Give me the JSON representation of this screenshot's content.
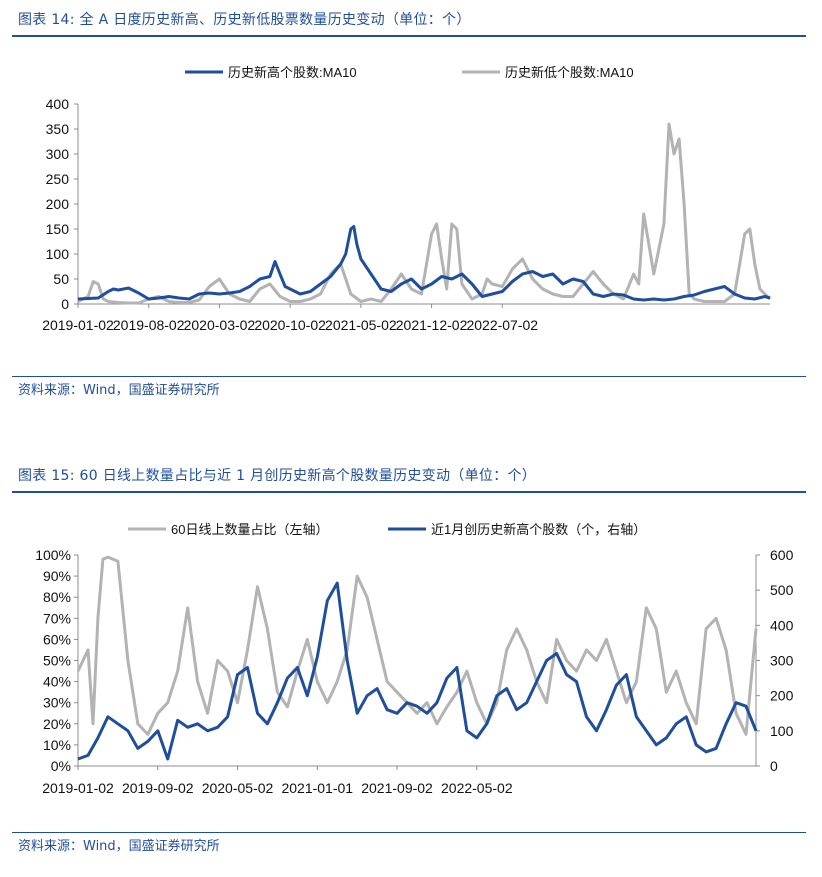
{
  "figure14": {
    "title": "图表 14:  全 A 日度历史新高、历史新低股票数量历史变动（单位：个）",
    "source": "资料来源：Wind，国盛证券研究所"
  },
  "figure15": {
    "title": "图表 15:  60 日线上数量占比与近 1 月创历史新高个股数量历史变动（单位：个）",
    "source": "资料来源：Wind，国盛证券研究所"
  },
  "colors": {
    "navy": "#1f4e9a",
    "gray": "#b3b3b3",
    "axis": "#8c8c8c"
  },
  "chart_data": [
    {
      "type": "line",
      "title": "全 A 日度历史新高、历史新低股票数量历史变动（单位：个）",
      "ylim": [
        0,
        400
      ],
      "yticks": [
        "0",
        "50",
        "100",
        "150",
        "200",
        "250",
        "300",
        "350",
        "400"
      ],
      "xticks": [
        "2019-01-02",
        "2019-08-02",
        "2020-03-02",
        "2020-10-02",
        "2021-05-02",
        "2021-12-02",
        "2022-07-02"
      ],
      "x_range": [
        0,
        68.5
      ],
      "series": [
        {
          "name": "历史新高个股数:MA10",
          "color": "#1f4e9a",
          "x": [
            0,
            2,
            3,
            3.5,
            4,
            5,
            6,
            7,
            8,
            9,
            10,
            11,
            12,
            13,
            14,
            15,
            16,
            17,
            18,
            19,
            19.5,
            20,
            20.5,
            21,
            22,
            23,
            24,
            25,
            26,
            26.5,
            27,
            27.3,
            27.6,
            28,
            29,
            30,
            31,
            32,
            33,
            34,
            35,
            36,
            37,
            38,
            39,
            40,
            41,
            42,
            43,
            44,
            45,
            46,
            47,
            48,
            49,
            50,
            51,
            52,
            53,
            54,
            55,
            56,
            57,
            58,
            59,
            60,
            61,
            62,
            63,
            64,
            65,
            66,
            67,
            68,
            68.5
          ],
          "y": [
            10,
            12,
            25,
            30,
            28,
            32,
            22,
            10,
            12,
            15,
            12,
            10,
            20,
            22,
            20,
            22,
            25,
            35,
            50,
            55,
            85,
            60,
            35,
            30,
            20,
            25,
            40,
            55,
            80,
            100,
            150,
            155,
            120,
            90,
            60,
            30,
            25,
            40,
            50,
            30,
            40,
            55,
            50,
            60,
            40,
            15,
            20,
            25,
            45,
            60,
            65,
            55,
            60,
            40,
            50,
            45,
            20,
            15,
            20,
            18,
            10,
            8,
            10,
            8,
            10,
            15,
            18,
            25,
            30,
            35,
            20,
            12,
            10,
            15,
            12
          ]
        },
        {
          "name": "历史新低个股数:MA10",
          "color": "#b3b3b3",
          "x": [
            0,
            1,
            1.5,
            2,
            2.5,
            3,
            4,
            5,
            6,
            7,
            8,
            9,
            10,
            11,
            12,
            13,
            14,
            15,
            16,
            17,
            18,
            19,
            20,
            21,
            22,
            23,
            24,
            25,
            26,
            27,
            28,
            29,
            30,
            31,
            32,
            33,
            34,
            35,
            35.5,
            36,
            36.5,
            37,
            37.5,
            38,
            39,
            40,
            40.5,
            41,
            42,
            43,
            44,
            45,
            46,
            47,
            48,
            49,
            50,
            51,
            52,
            53,
            54,
            55,
            55.5,
            56,
            56.5,
            57,
            58,
            58.5,
            59,
            59.5,
            60,
            60.5,
            61,
            62,
            63,
            64,
            65,
            65.5,
            66,
            66.5,
            67,
            67.5,
            68,
            68.5
          ],
          "y": [
            5,
            15,
            45,
            40,
            10,
            5,
            3,
            2,
            2,
            10,
            15,
            5,
            3,
            3,
            8,
            35,
            50,
            20,
            10,
            5,
            30,
            40,
            15,
            5,
            5,
            10,
            20,
            60,
            80,
            20,
            5,
            10,
            5,
            30,
            60,
            30,
            20,
            140,
            160,
            90,
            30,
            160,
            150,
            40,
            10,
            20,
            50,
            40,
            35,
            70,
            90,
            50,
            30,
            20,
            15,
            15,
            40,
            65,
            40,
            20,
            10,
            60,
            40,
            180,
            120,
            60,
            160,
            360,
            300,
            330,
            200,
            20,
            10,
            5,
            5,
            5,
            20,
            80,
            140,
            150,
            80,
            30,
            20,
            10
          ]
        }
      ]
    },
    {
      "type": "line",
      "title": "60 日线上数量占比与近 1 月创历史新高个股数量历史变动（单位：个）",
      "ylim": [
        0,
        100
      ],
      "y2lim": [
        0,
        600
      ],
      "yticks": [
        "0%",
        "10%",
        "20%",
        "30%",
        "40%",
        "50%",
        "60%",
        "70%",
        "80%",
        "90%",
        "100%"
      ],
      "y2ticks": [
        "0",
        "100",
        "200",
        "300",
        "400",
        "500",
        "600"
      ],
      "xticks": [
        "2019-01-02",
        "2019-09-02",
        "2020-05-02",
        "2021-01-01",
        "2021-09-02",
        "2022-05-02"
      ],
      "x_range": [
        0,
        68
      ],
      "series": [
        {
          "name": "60日线上数量占比（左轴）",
          "color": "#b3b3b3",
          "axis": "left",
          "x": [
            0,
            1,
            1.5,
            2,
            2.5,
            3,
            4,
            5,
            6,
            7,
            8,
            9,
            10,
            11,
            12,
            13,
            14,
            15,
            16,
            17,
            18,
            19,
            20,
            21,
            22,
            23,
            24,
            25,
            26,
            27,
            28,
            29,
            30,
            31,
            32,
            33,
            34,
            35,
            36,
            37,
            38,
            39,
            40,
            41,
            42,
            43,
            44,
            45,
            46,
            47,
            48,
            49,
            50,
            51,
            52,
            53,
            54,
            55,
            56,
            57,
            58,
            59,
            60,
            61,
            62,
            63,
            64,
            65,
            66,
            67,
            68
          ],
          "y": [
            45,
            55,
            20,
            70,
            98,
            99,
            97,
            50,
            20,
            15,
            25,
            30,
            45,
            75,
            40,
            25,
            50,
            45,
            30,
            55,
            85,
            65,
            35,
            28,
            45,
            60,
            40,
            30,
            40,
            55,
            90,
            80,
            60,
            40,
            35,
            30,
            25,
            30,
            20,
            28,
            35,
            45,
            30,
            20,
            30,
            55,
            65,
            55,
            40,
            30,
            60,
            50,
            45,
            55,
            50,
            60,
            45,
            30,
            40,
            75,
            65,
            35,
            45,
            30,
            20,
            65,
            70,
            55,
            25,
            15,
            65
          ]
        },
        {
          "name": "近1月创历史新高个股数（个，右轴）",
          "color": "#1f4e9a",
          "axis": "right",
          "x": [
            0,
            1,
            2,
            3,
            4,
            5,
            6,
            7,
            8,
            9,
            10,
            11,
            12,
            13,
            14,
            15,
            16,
            17,
            18,
            19,
            20,
            21,
            22,
            23,
            24,
            25,
            26,
            27,
            28,
            29,
            30,
            31,
            32,
            33,
            34,
            35,
            36,
            37,
            38,
            39,
            40,
            41,
            42,
            43,
            44,
            45,
            46,
            47,
            48,
            49,
            50,
            51,
            52,
            53,
            54,
            55,
            56,
            57,
            58,
            59,
            60,
            61,
            62,
            63,
            64,
            65,
            66,
            67,
            68
          ],
          "y": [
            20,
            30,
            80,
            140,
            120,
            100,
            50,
            70,
            100,
            20,
            130,
            110,
            120,
            100,
            110,
            140,
            260,
            280,
            150,
            120,
            180,
            250,
            280,
            200,
            310,
            470,
            520,
            300,
            150,
            200,
            220,
            160,
            150,
            180,
            170,
            150,
            180,
            250,
            280,
            100,
            80,
            120,
            200,
            220,
            160,
            180,
            240,
            300,
            320,
            260,
            240,
            140,
            100,
            160,
            230,
            260,
            140,
            100,
            60,
            80,
            120,
            140,
            60,
            40,
            50,
            120,
            180,
            170,
            100
          ]
        }
      ]
    }
  ]
}
